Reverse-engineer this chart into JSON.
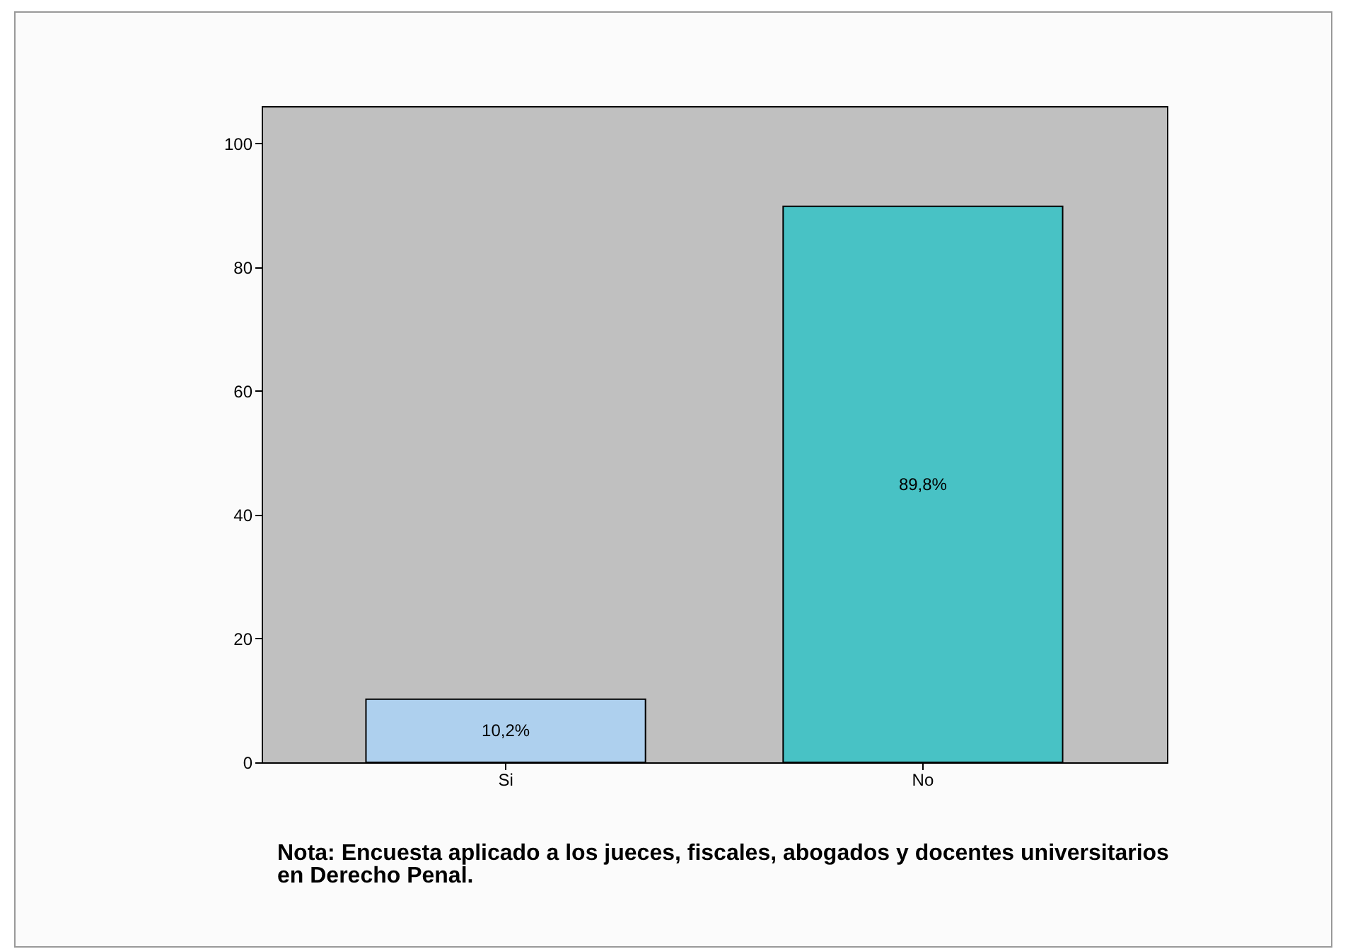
{
  "chart_data": {
    "type": "bar",
    "categories": [
      "Si",
      "No"
    ],
    "series": [
      {
        "colors": [
          "#aed0ee",
          "#48c2c5"
        ],
        "values": [
          10.2,
          89.8
        ]
      }
    ],
    "value_labels": [
      "10,2%",
      "89,8%"
    ],
    "ylim": [
      0,
      106
    ],
    "yticks": [
      0,
      20,
      40,
      60,
      80,
      100
    ],
    "grid": false,
    "annotations": [
      "Nota: Encuesta aplicado a los jueces, fiscales, abogados y docentes universitarios en Derecho Penal."
    ]
  }
}
